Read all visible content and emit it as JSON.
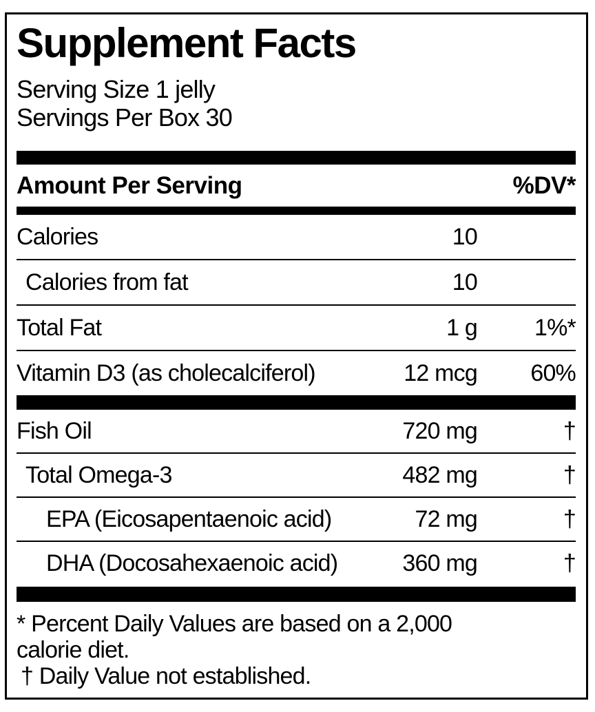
{
  "label": {
    "title": "Supplement Facts",
    "serving": {
      "size_line": "Serving Size 1 jelly",
      "per_box_line": "Servings Per Box 30"
    },
    "header": {
      "amount_label": "Amount Per Serving",
      "dv_label": "%DV*"
    },
    "rows": [
      {
        "name": "Calories",
        "amount": "10",
        "dv": "",
        "indent": 0
      },
      {
        "name": "Calories from fat",
        "amount": "10",
        "dv": "",
        "indent": 1
      },
      {
        "name": "Total Fat",
        "amount": "1 g",
        "dv": "1%*",
        "indent": 0
      },
      {
        "name": "Vitamin D3 (as cholecalciferol)",
        "amount": "12 mcg",
        "dv": "60%",
        "indent": 0
      },
      {
        "name": "Fish Oil",
        "amount": "720 mg",
        "dv": "†",
        "indent": 0
      },
      {
        "name": "Total Omega-3",
        "amount": "482 mg",
        "dv": "†",
        "indent": 1
      },
      {
        "name": "EPA (Eicosapentaenoic acid)",
        "amount": "72 mg",
        "dv": "†",
        "indent": 2
      },
      {
        "name": "DHA (Docosahexaenoic acid)",
        "amount": "360 mg",
        "dv": "†",
        "indent": 2
      }
    ],
    "footnotes": {
      "lines": [
        "* Percent Daily Values are based on a 2,000",
        "calorie diet.",
        "† Daily Value not established."
      ]
    },
    "colors": {
      "text": "#000000",
      "background": "#ffffff",
      "rule": "#000000"
    }
  }
}
